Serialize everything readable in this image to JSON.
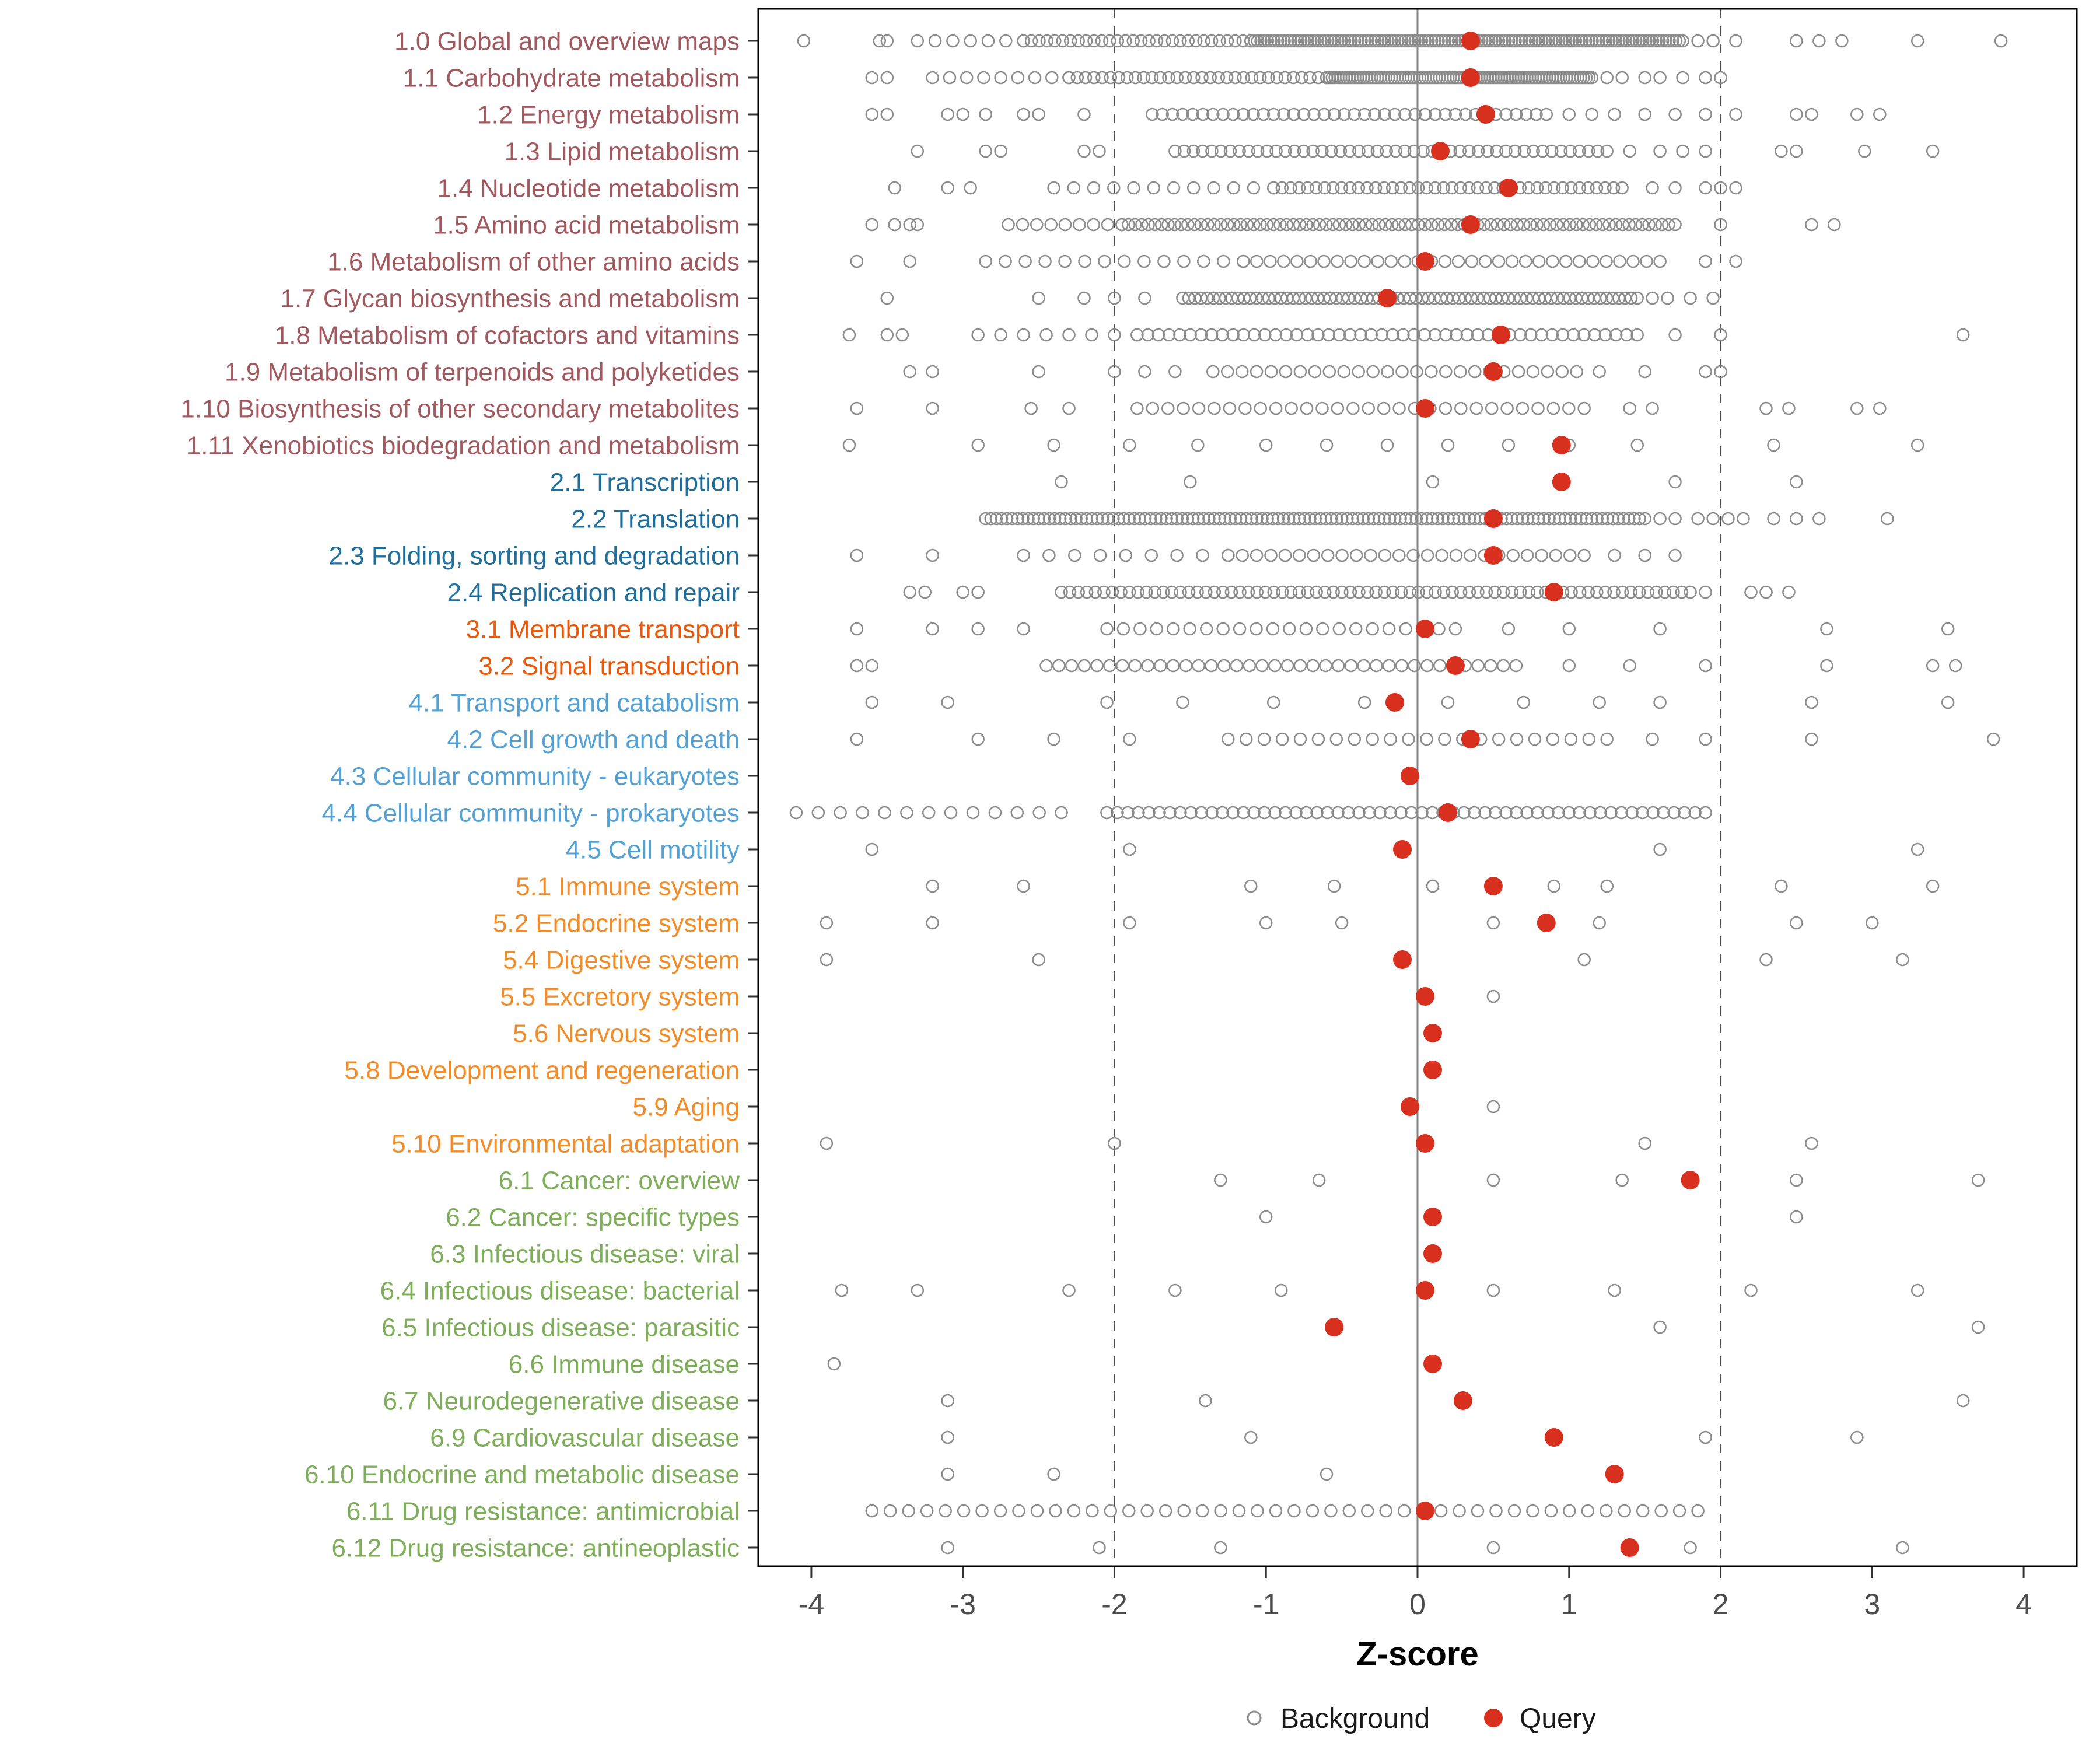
{
  "chart_data": {
    "type": "scatter",
    "title": "",
    "xlabel": "Z-score",
    "ylabel": "",
    "xlim": [
      -4.35,
      4.35
    ],
    "x_ticks": [
      -4,
      -3,
      -2,
      -1,
      0,
      1,
      2,
      3,
      4
    ],
    "grid": false,
    "reference_lines": {
      "solid": [
        0
      ],
      "dashed": [
        -2,
        2
      ]
    },
    "legend": {
      "position": "bottom",
      "items": [
        {
          "label": "Background",
          "marker": "open-circle"
        },
        {
          "label": "Query",
          "marker": "filled-circle"
        }
      ]
    },
    "colors": {
      "query": "#D7301F",
      "background_stroke": "#8C8C8C",
      "axis_text": "#4D4D4D",
      "group_colors": {
        "metabolism": "#A05A5F",
        "genetic_information_processing": "#1F6E9C",
        "environmental_information_processing": "#E8590C",
        "cellular_processes": "#54A1D3",
        "organismal_systems": "#F28C28",
        "human_diseases": "#7FAE5A"
      }
    },
    "categories": [
      {
        "label": "1.0 Global and overview maps",
        "group": "metabolism",
        "query": 0.35,
        "bg_bands": [
          [
            -1.1,
            1.75,
            130
          ],
          [
            -2.6,
            -1.1,
            30
          ],
          [
            -3.3,
            -2.6,
            7
          ]
        ],
        "bg_points": [
          -4.05,
          -3.55,
          -3.5,
          1.85,
          1.95,
          2.1,
          2.5,
          2.65,
          2.8,
          3.3,
          3.85
        ]
      },
      {
        "label": "1.1 Carbohydrate metabolism",
        "group": "metabolism",
        "query": 0.35,
        "bg_bands": [
          [
            -0.6,
            1.15,
            95
          ],
          [
            -2.3,
            -0.6,
            32
          ],
          [
            -3.2,
            -2.3,
            9
          ]
        ],
        "bg_points": [
          -3.6,
          -3.5,
          1.25,
          1.35,
          1.5,
          1.6,
          1.75,
          1.9,
          2.0
        ]
      },
      {
        "label": "1.2 Energy metabolism",
        "group": "metabolism",
        "query": 0.45,
        "bg_bands": [
          [
            -1.75,
            0.85,
            40
          ]
        ],
        "bg_points": [
          -3.6,
          -3.5,
          -3.1,
          -3.0,
          -2.85,
          -2.6,
          -2.5,
          -2.2,
          1.0,
          1.15,
          1.3,
          1.5,
          1.7,
          1.9,
          2.1,
          2.5,
          2.6,
          2.9,
          3.05
        ]
      },
      {
        "label": "1.3 Lipid metabolism",
        "group": "metabolism",
        "query": 0.15,
        "bg_bands": [
          [
            -1.6,
            1.25,
            48
          ]
        ],
        "bg_points": [
          -3.3,
          -2.85,
          -2.75,
          -2.2,
          -2.1,
          1.4,
          1.6,
          1.75,
          1.9,
          2.4,
          2.5,
          2.95,
          3.4
        ]
      },
      {
        "label": "1.4 Nucleotide metabolism",
        "group": "metabolism",
        "query": 0.6,
        "bg_bands": [
          [
            -0.95,
            1.35,
            42
          ],
          [
            -2.4,
            -0.95,
            12
          ]
        ],
        "bg_points": [
          -3.45,
          -3.1,
          -2.95,
          1.55,
          1.7,
          1.9,
          2.0,
          2.1
        ]
      },
      {
        "label": "1.5 Amino acid metabolism",
        "group": "metabolism",
        "query": 0.35,
        "bg_bands": [
          [
            -1.95,
            1.7,
            85
          ],
          [
            -2.7,
            -1.95,
            9
          ]
        ],
        "bg_points": [
          -3.6,
          -3.45,
          -3.35,
          -3.3,
          2.0,
          2.6,
          2.75
        ]
      },
      {
        "label": "1.6 Metabolism of other amino acids",
        "group": "metabolism",
        "query": 0.05,
        "bg_bands": [
          [
            -1.15,
            1.6,
            32
          ],
          [
            -2.85,
            -1.15,
            14
          ]
        ],
        "bg_points": [
          -3.7,
          -3.35,
          1.9,
          2.1
        ]
      },
      {
        "label": "1.7 Glycan biosynthesis and metabolism",
        "group": "metabolism",
        "query": -0.2,
        "bg_bands": [
          [
            -1.55,
            1.45,
            75
          ]
        ],
        "bg_points": [
          -3.5,
          -2.5,
          -2.2,
          -2.0,
          -1.8,
          1.55,
          1.65,
          1.8,
          1.95
        ]
      },
      {
        "label": "1.8 Metabolism of cofactors and vitamins",
        "group": "metabolism",
        "query": 0.55,
        "bg_bands": [
          [
            -1.85,
            1.45,
            48
          ],
          [
            -2.9,
            -1.85,
            8
          ]
        ],
        "bg_points": [
          -3.75,
          -3.5,
          -3.4,
          1.7,
          2.0,
          3.6
        ]
      },
      {
        "label": "1.9 Metabolism of terpenoids and polyketides",
        "group": "metabolism",
        "query": 0.5,
        "bg_bands": [
          [
            -1.35,
            1.05,
            26
          ]
        ],
        "bg_points": [
          -3.35,
          -3.2,
          -2.5,
          -2.0,
          -1.8,
          -1.6,
          1.2,
          1.5,
          1.9,
          2.0
        ]
      },
      {
        "label": "1.10 Biosynthesis of other secondary metabolites",
        "group": "metabolism",
        "query": 0.05,
        "bg_bands": [
          [
            -1.85,
            1.1,
            30
          ]
        ],
        "bg_points": [
          -3.7,
          -3.2,
          -2.55,
          -2.3,
          1.4,
          1.55,
          2.3,
          2.45,
          2.9,
          3.05
        ]
      },
      {
        "label": "1.11 Xenobiotics biodegradation and metabolism",
        "group": "metabolism",
        "query": 0.95,
        "bg_bands": [],
        "bg_points": [
          -3.75,
          -2.9,
          -2.4,
          -1.9,
          -1.45,
          -1.0,
          -0.6,
          -0.2,
          0.2,
          0.6,
          1.0,
          1.45,
          2.35,
          3.3
        ]
      },
      {
        "label": "2.1 Transcription",
        "group": "genetic_information_processing",
        "query": 0.95,
        "bg_bands": [],
        "bg_points": [
          -2.35,
          -1.5,
          0.1,
          1.7,
          2.5
        ]
      },
      {
        "label": "2.2 Translation",
        "group": "genetic_information_processing",
        "query": 0.5,
        "bg_bands": [
          [
            -2.85,
            1.5,
            125
          ]
        ],
        "bg_points": [
          1.6,
          1.7,
          1.85,
          1.95,
          2.05,
          2.15,
          2.35,
          2.5,
          2.65,
          3.1
        ]
      },
      {
        "label": "2.3 Folding, sorting and degradation",
        "group": "genetic_information_processing",
        "query": 0.5,
        "bg_bands": [
          [
            -1.25,
            1.1,
            26
          ],
          [
            -2.6,
            -1.25,
            9
          ]
        ],
        "bg_points": [
          -3.7,
          -3.2,
          1.3,
          1.5,
          1.7
        ]
      },
      {
        "label": "2.4 Replication and repair",
        "group": "genetic_information_processing",
        "query": 0.9,
        "bg_bands": [
          [
            -2.35,
            1.8,
            75
          ]
        ],
        "bg_points": [
          -3.35,
          -3.25,
          -3.0,
          -2.9,
          1.9,
          2.2,
          2.3,
          2.45
        ]
      },
      {
        "label": "3.1 Membrane transport",
        "group": "environmental_information_processing",
        "query": 0.05,
        "bg_bands": [
          [
            -2.05,
            0.25,
            22
          ]
        ],
        "bg_points": [
          -3.7,
          -3.2,
          -2.9,
          -2.6,
          0.6,
          1.0,
          1.6,
          2.7,
          3.5
        ]
      },
      {
        "label": "3.2 Signal transduction",
        "group": "environmental_information_processing",
        "query": 0.25,
        "bg_bands": [
          [
            -2.45,
            0.65,
            38
          ]
        ],
        "bg_points": [
          -3.7,
          -3.6,
          1.0,
          1.4,
          1.9,
          2.7,
          3.4,
          3.55
        ]
      },
      {
        "label": "4.1 Transport and catabolism",
        "group": "cellular_processes",
        "query": -0.15,
        "bg_bands": [],
        "bg_points": [
          -3.6,
          -3.1,
          -2.05,
          -1.55,
          -0.95,
          -0.35,
          0.2,
          0.7,
          1.2,
          1.6,
          2.6,
          3.5
        ]
      },
      {
        "label": "4.2 Cell growth and death",
        "group": "cellular_processes",
        "query": 0.35,
        "bg_bands": [
          [
            -1.25,
            1.25,
            22
          ]
        ],
        "bg_points": [
          -3.7,
          -2.9,
          -2.4,
          -1.9,
          1.55,
          1.9,
          2.6,
          3.8
        ]
      },
      {
        "label": "4.3 Cellular community - eukaryotes",
        "group": "cellular_processes",
        "query": -0.05,
        "bg_bands": [],
        "bg_points": []
      },
      {
        "label": "4.4 Cellular community - prokaryotes",
        "group": "cellular_processes",
        "query": 0.2,
        "bg_bands": [
          [
            -2.05,
            1.9,
            58
          ],
          [
            -4.1,
            -2.35,
            13
          ]
        ],
        "bg_points": []
      },
      {
        "label": "4.5 Cell motility",
        "group": "cellular_processes",
        "query": -0.1,
        "bg_bands": [],
        "bg_points": [
          -3.6,
          -1.9,
          1.6,
          3.3
        ]
      },
      {
        "label": "5.1 Immune system",
        "group": "organismal_systems",
        "query": 0.5,
        "bg_bands": [],
        "bg_points": [
          -3.2,
          -2.6,
          -1.1,
          -0.55,
          0.1,
          0.9,
          1.25,
          2.4,
          3.4
        ]
      },
      {
        "label": "5.2 Endocrine system",
        "group": "organismal_systems",
        "query": 0.85,
        "bg_bands": [],
        "bg_points": [
          -3.9,
          -3.2,
          -1.9,
          -1.0,
          -0.5,
          0.5,
          1.2,
          2.5,
          3.0
        ]
      },
      {
        "label": "5.4 Digestive system",
        "group": "organismal_systems",
        "query": -0.1,
        "bg_bands": [],
        "bg_points": [
          -3.9,
          -2.5,
          1.1,
          2.3,
          3.2
        ]
      },
      {
        "label": "5.5 Excretory system",
        "group": "organismal_systems",
        "query": 0.05,
        "bg_bands": [],
        "bg_points": [
          0.5
        ]
      },
      {
        "label": "5.6 Nervous system",
        "group": "organismal_systems",
        "query": 0.1,
        "bg_bands": [],
        "bg_points": []
      },
      {
        "label": "5.8 Development and regeneration",
        "group": "organismal_systems",
        "query": 0.1,
        "bg_bands": [],
        "bg_points": []
      },
      {
        "label": "5.9 Aging",
        "group": "organismal_systems",
        "query": -0.05,
        "bg_bands": [],
        "bg_points": [
          0.5
        ]
      },
      {
        "label": "5.10 Environmental adaptation",
        "group": "organismal_systems",
        "query": 0.05,
        "bg_bands": [],
        "bg_points": [
          -3.9,
          -2.0,
          1.5,
          2.6
        ]
      },
      {
        "label": "6.1 Cancer: overview",
        "group": "human_diseases",
        "query": 1.8,
        "bg_bands": [],
        "bg_points": [
          -1.3,
          -0.65,
          0.5,
          1.35,
          2.5,
          3.7
        ]
      },
      {
        "label": "6.2 Cancer: specific types",
        "group": "human_diseases",
        "query": 0.1,
        "bg_bands": [],
        "bg_points": [
          -1.0,
          2.5
        ]
      },
      {
        "label": "6.3 Infectious disease: viral",
        "group": "human_diseases",
        "query": 0.1,
        "bg_bands": [],
        "bg_points": []
      },
      {
        "label": "6.4 Infectious disease: bacterial",
        "group": "human_diseases",
        "query": 0.05,
        "bg_bands": [],
        "bg_points": [
          -3.8,
          -3.3,
          -2.3,
          -1.6,
          -0.9,
          0.5,
          1.3,
          2.2,
          3.3
        ]
      },
      {
        "label": "6.5 Infectious disease: parasitic",
        "group": "human_diseases",
        "query": -0.55,
        "bg_bands": [],
        "bg_points": [
          1.6,
          3.7
        ]
      },
      {
        "label": "6.6 Immune disease",
        "group": "human_diseases",
        "query": 0.1,
        "bg_bands": [],
        "bg_points": [
          -3.85
        ]
      },
      {
        "label": "6.7 Neurodegenerative disease",
        "group": "human_diseases",
        "query": 0.3,
        "bg_bands": [],
        "bg_points": [
          -3.1,
          -1.4,
          3.6
        ]
      },
      {
        "label": "6.9 Cardiovascular disease",
        "group": "human_diseases",
        "query": 0.9,
        "bg_bands": [],
        "bg_points": [
          -3.1,
          -1.1,
          1.9,
          2.9
        ]
      },
      {
        "label": "6.10 Endocrine and metabolic disease",
        "group": "human_diseases",
        "query": 1.3,
        "bg_bands": [],
        "bg_points": [
          -3.1,
          -2.4,
          -0.6,
          1.3
        ]
      },
      {
        "label": "6.11 Drug resistance: antimicrobial",
        "group": "human_diseases",
        "query": 0.05,
        "bg_bands": [
          [
            -3.6,
            1.85,
            46
          ]
        ],
        "bg_points": []
      },
      {
        "label": "6.12 Drug resistance: antineoplastic",
        "group": "human_diseases",
        "query": 1.4,
        "bg_bands": [],
        "bg_points": [
          -3.1,
          -2.1,
          -1.3,
          0.5,
          1.8,
          3.2
        ]
      }
    ]
  }
}
